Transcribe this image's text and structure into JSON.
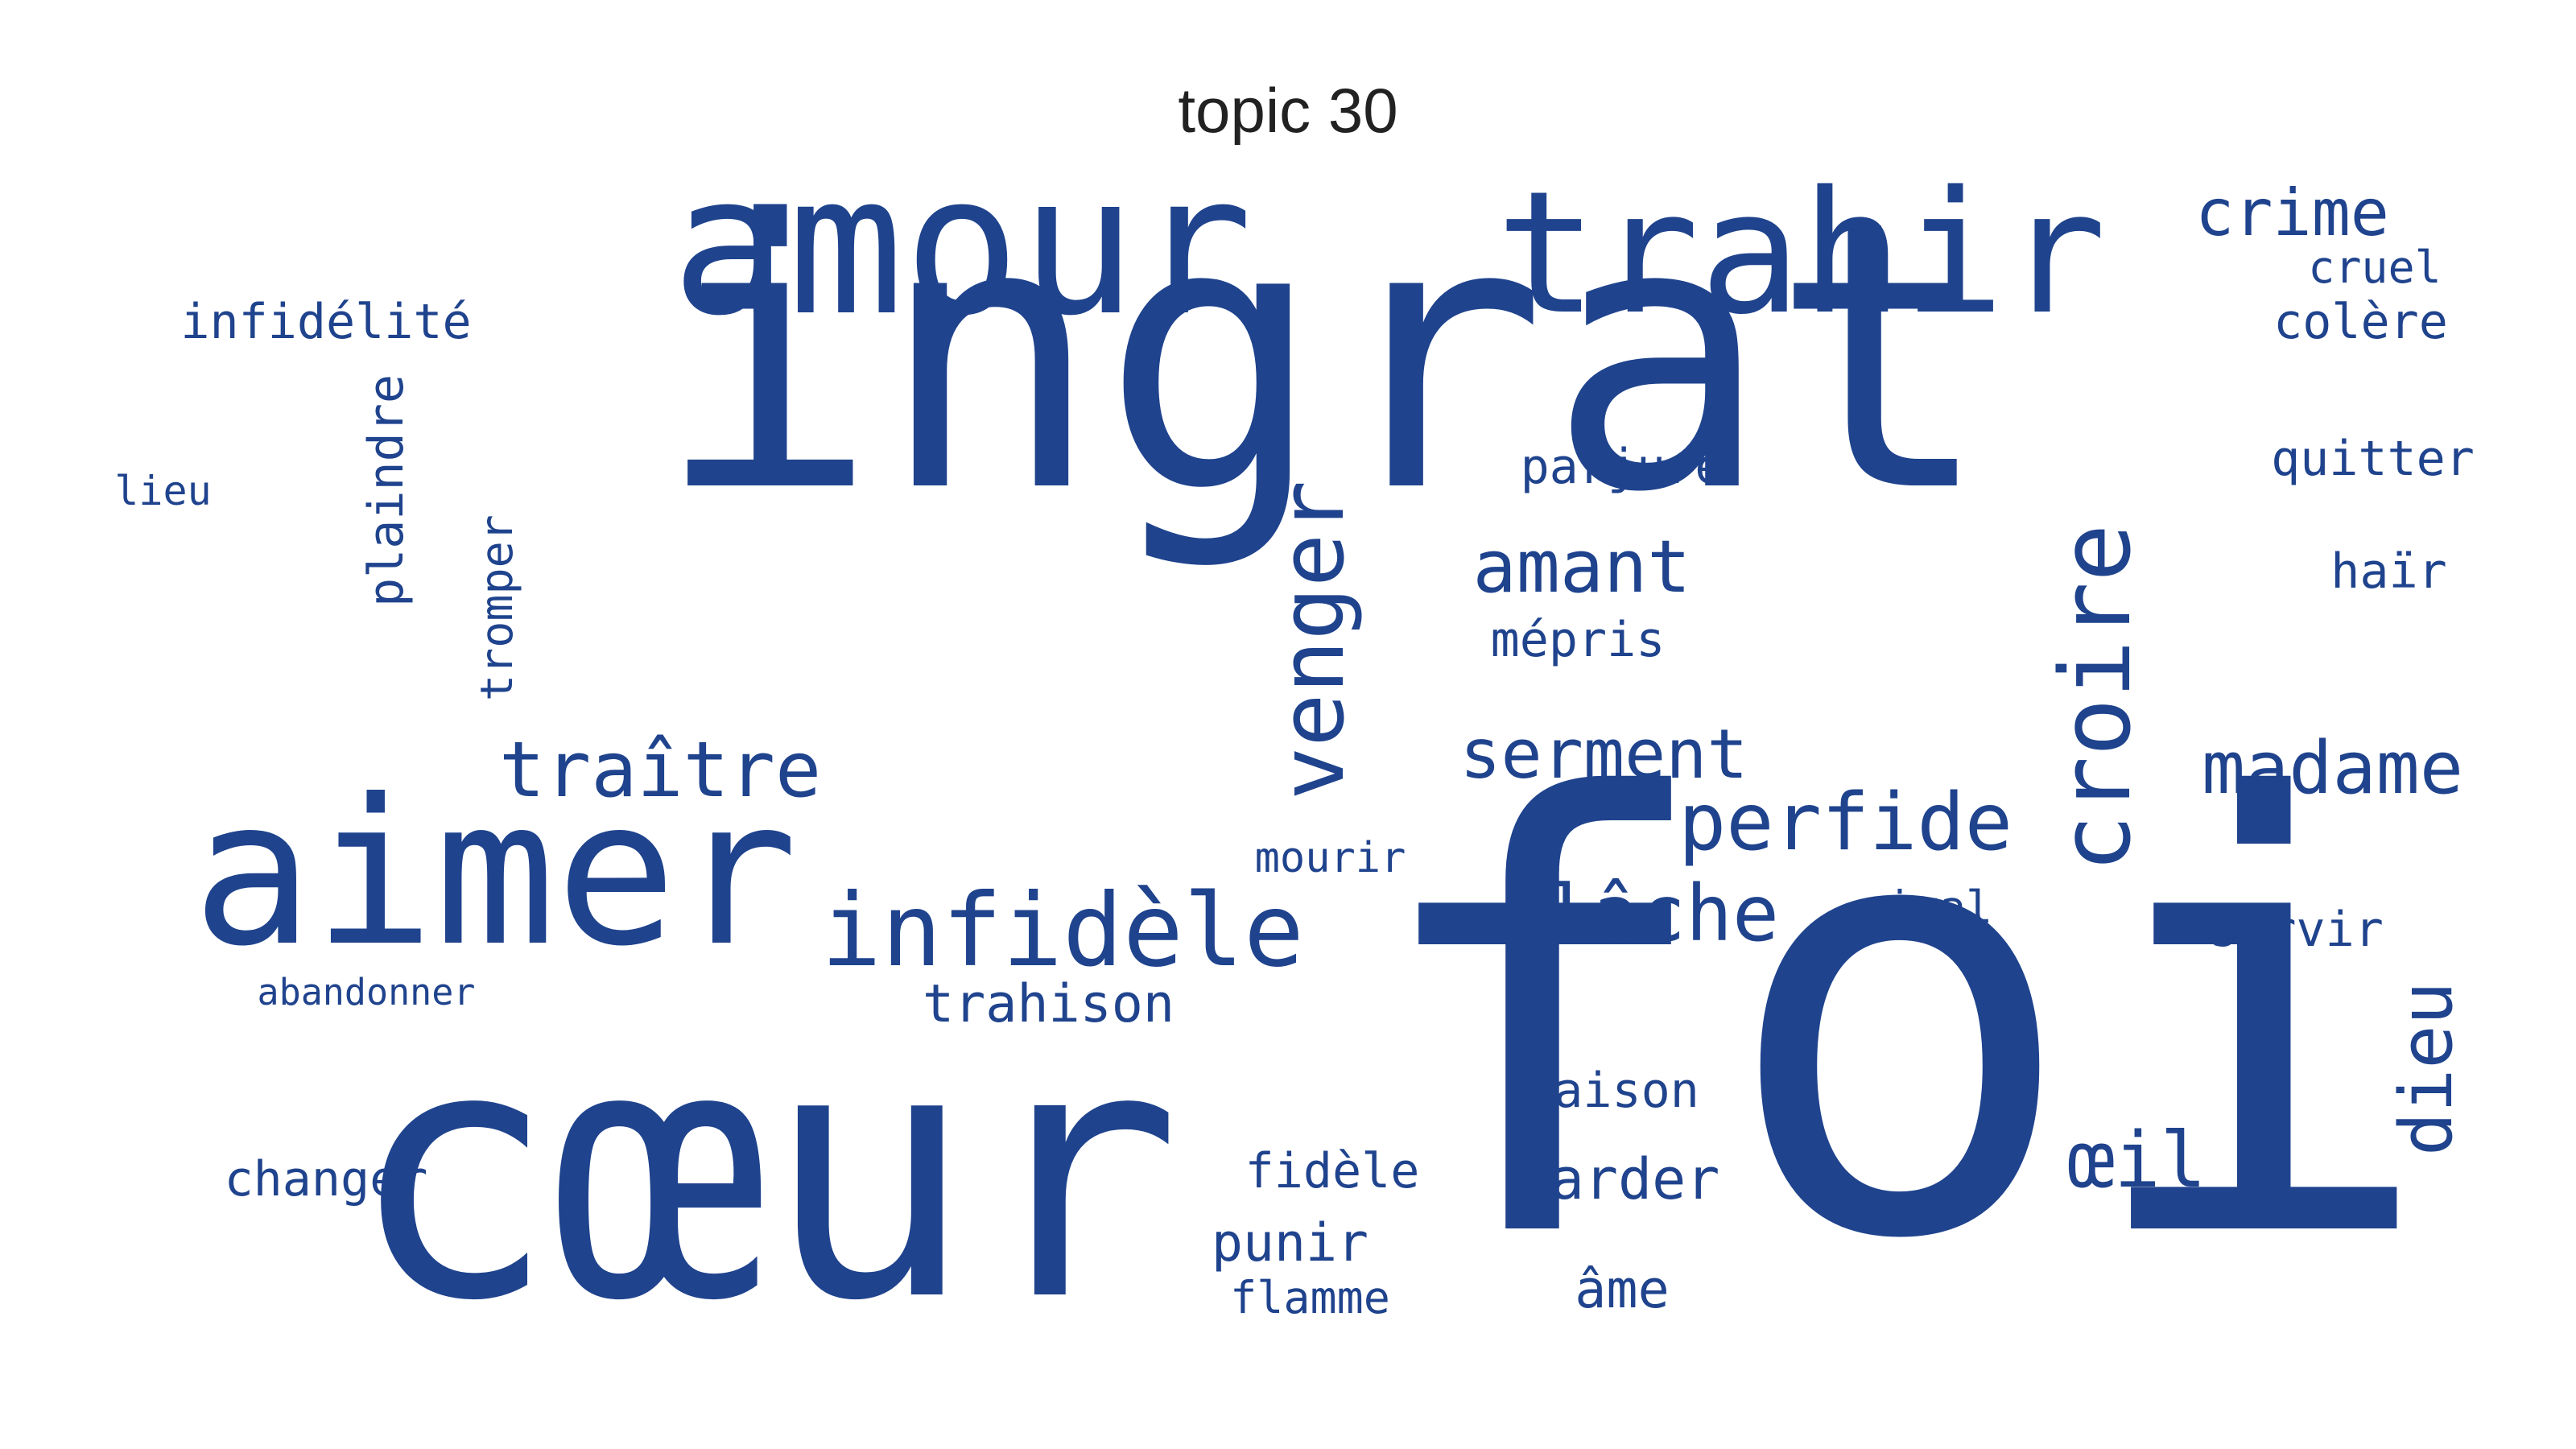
{
  "title": "topic 30",
  "colors": {
    "word": "#1f438d",
    "title": "#222222",
    "background": "#ffffff"
  },
  "words": {
    "ingrat": "ingrat",
    "foi": "foi",
    "coeur": "cœur",
    "amour": "amour",
    "aimer": "aimer",
    "trahir": "trahir",
    "croire": "croire",
    "venger": "venger",
    "infidele": "infidèle",
    "perfide": "perfide",
    "traitre": "traître",
    "lache": "lâche",
    "serment": "serment",
    "madame": "madame",
    "amant": "amant",
    "crime": "crime",
    "cruel": "cruel",
    "colere": "colère",
    "infidelite": "infidélité",
    "plaindre": "plaindre",
    "tromper": "tromper",
    "lieu": "lieu",
    "parjure": "parjure",
    "mepris": "mépris",
    "quitter": "quitter",
    "hair": "haïr",
    "mourir": "mourir",
    "rival": "rival",
    "servir": "servir",
    "abandonner": "abandonner",
    "trahison": "trahison",
    "dieu": "dieu",
    "raison": "raison",
    "oeil": "œil",
    "changer": "changer",
    "fidele": "fidèle",
    "garder": "garder",
    "punir": "punir",
    "flamme": "flamme",
    "ame": "âme"
  }
}
